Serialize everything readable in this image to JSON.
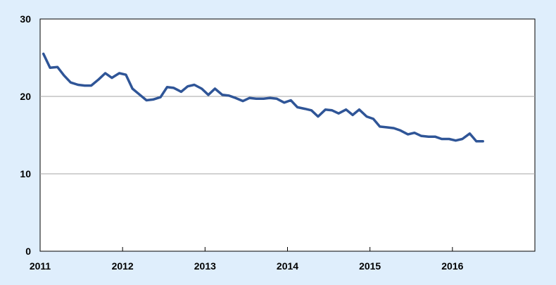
{
  "chart_data": {
    "type": "line",
    "title": "",
    "xlabel": "",
    "ylabel": "",
    "xlim": [
      2011.0,
      2017.0
    ],
    "ylim": [
      0,
      30
    ],
    "grid": true,
    "legend": "none",
    "x_ticks": [
      {
        "value": 2011,
        "label": "2011"
      },
      {
        "value": 2012,
        "label": "2012"
      },
      {
        "value": 2013,
        "label": "2013"
      },
      {
        "value": 2014,
        "label": "2014"
      },
      {
        "value": 2015,
        "label": "2015"
      },
      {
        "value": 2016,
        "label": "2016"
      }
    ],
    "y_ticks": [
      {
        "value": 0,
        "label": "0"
      },
      {
        "value": 10,
        "label": "10"
      },
      {
        "value": 20,
        "label": "20"
      },
      {
        "value": 30,
        "label": "30"
      }
    ],
    "series": [
      {
        "color": "#2f5597",
        "x": [
          2011.04,
          2011.12,
          2011.21,
          2011.29,
          2011.37,
          2011.46,
          2011.54,
          2011.62,
          2011.71,
          2011.79,
          2011.87,
          2011.96,
          2012.04,
          2012.12,
          2012.21,
          2012.29,
          2012.37,
          2012.46,
          2012.54,
          2012.62,
          2012.71,
          2012.79,
          2012.87,
          2012.96,
          2013.04,
          2013.12,
          2013.21,
          2013.29,
          2013.37,
          2013.46,
          2013.54,
          2013.62,
          2013.71,
          2013.79,
          2013.87,
          2013.96,
          2014.04,
          2014.12,
          2014.21,
          2014.29,
          2014.37,
          2014.46,
          2014.54,
          2014.62,
          2014.71,
          2014.79,
          2014.87,
          2014.96,
          2015.04,
          2015.12,
          2015.21,
          2015.29,
          2015.37,
          2015.46,
          2015.54,
          2015.62,
          2015.71,
          2015.79,
          2015.87,
          2015.96,
          2016.04,
          2016.12,
          2016.21,
          2016.29,
          2016.37
        ],
        "values": [
          25.5,
          23.7,
          23.8,
          22.7,
          21.8,
          21.5,
          21.4,
          21.4,
          22.2,
          23.0,
          22.4,
          23.0,
          22.8,
          21.0,
          20.2,
          19.5,
          19.6,
          19.9,
          21.2,
          21.1,
          20.6,
          21.3,
          21.5,
          21.0,
          20.2,
          21.0,
          20.2,
          20.1,
          19.8,
          19.4,
          19.8,
          19.7,
          19.7,
          19.8,
          19.7,
          19.2,
          19.5,
          18.6,
          18.4,
          18.2,
          17.4,
          18.3,
          18.2,
          17.8,
          18.3,
          17.6,
          18.3,
          17.4,
          17.1,
          16.1,
          16.0,
          15.9,
          15.6,
          15.1,
          15.3,
          14.9,
          14.8,
          14.8,
          14.5,
          14.5,
          14.3,
          14.5,
          15.2,
          14.2,
          14.2
        ]
      }
    ]
  }
}
